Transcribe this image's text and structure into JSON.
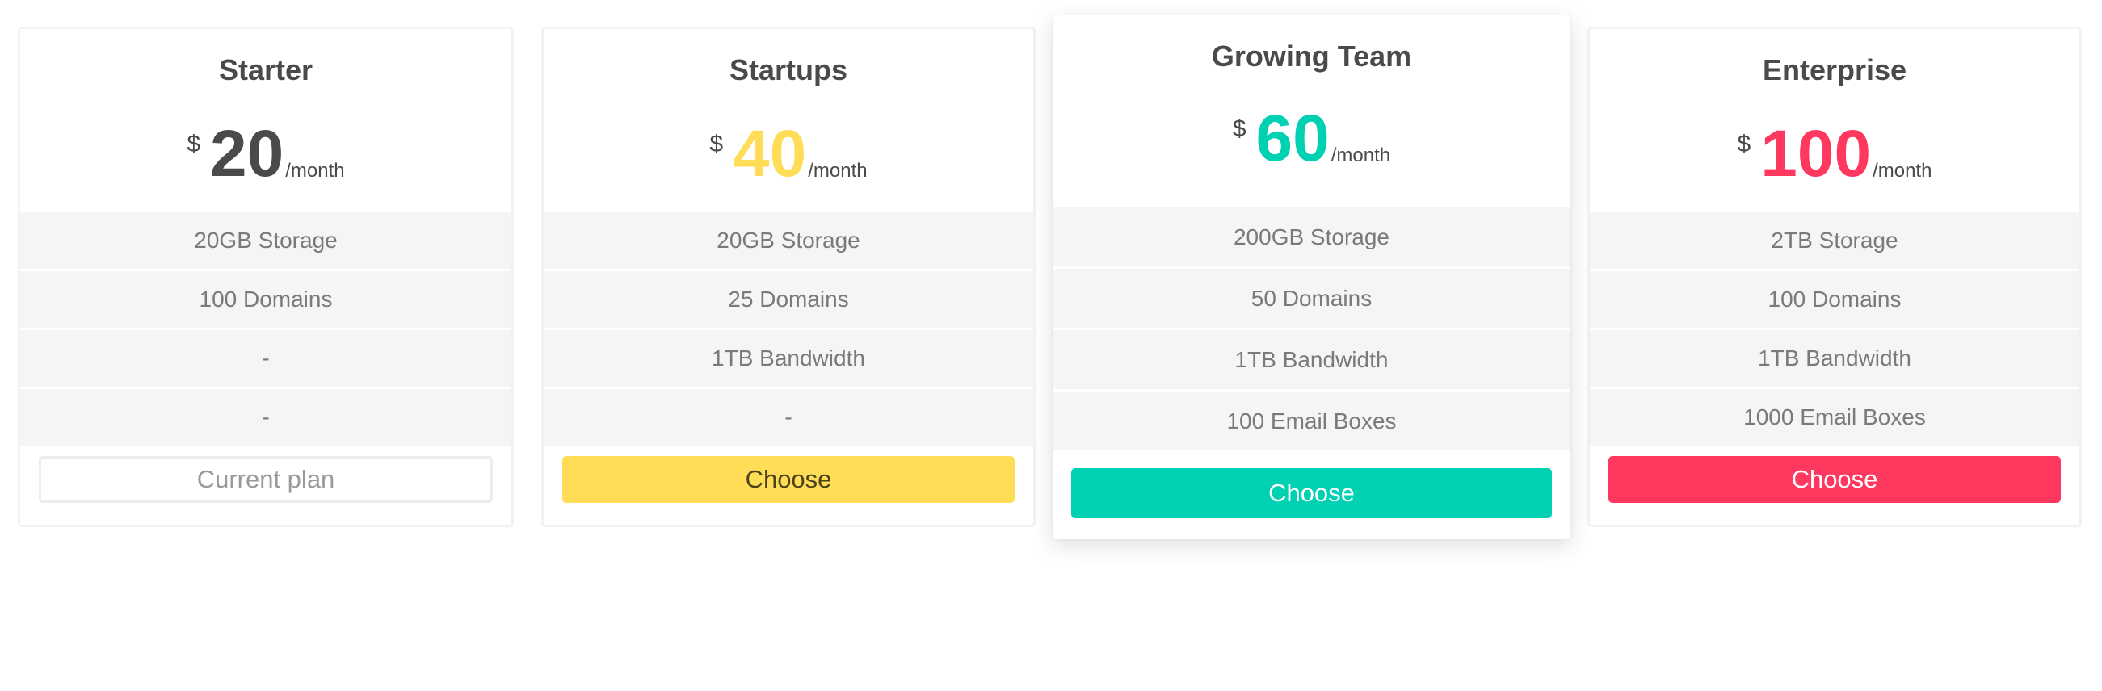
{
  "colors": {
    "text": "#4a4a4a",
    "feature_text": "#7a7a7a",
    "yellow": "#ffdd57",
    "teal": "#00d1b2",
    "red": "#ff3860"
  },
  "plans": [
    {
      "name": "Starter",
      "currency": "$",
      "amount": "20",
      "period": "/month",
      "amount_color": "#4a4a4a",
      "features": [
        "20GB Storage",
        "100 Domains",
        "-",
        "-"
      ],
      "button": "Current plan",
      "button_style": "outline"
    },
    {
      "name": "Startups",
      "currency": "$",
      "amount": "40",
      "period": "/month",
      "amount_color": "#ffdd57",
      "features": [
        "20GB Storage",
        "25 Domains",
        "1TB Bandwidth",
        "-"
      ],
      "button": "Choose",
      "button_color": "#ffdd57"
    },
    {
      "name": "Growing Team",
      "currency": "$",
      "amount": "60",
      "period": "/month",
      "amount_color": "#00d1b2",
      "features": [
        "200GB Storage",
        "50 Domains",
        "1TB Bandwidth",
        "100 Email Boxes"
      ],
      "button": "Choose",
      "button_color": "#00d1b2",
      "featured": true
    },
    {
      "name": "Enterprise",
      "currency": "$",
      "amount": "100",
      "period": "/month",
      "amount_color": "#ff3860",
      "features": [
        "2TB Storage",
        "100 Domains",
        "1TB Bandwidth",
        "1000 Email Boxes"
      ],
      "button": "Choose",
      "button_color": "#ff3860"
    }
  ]
}
